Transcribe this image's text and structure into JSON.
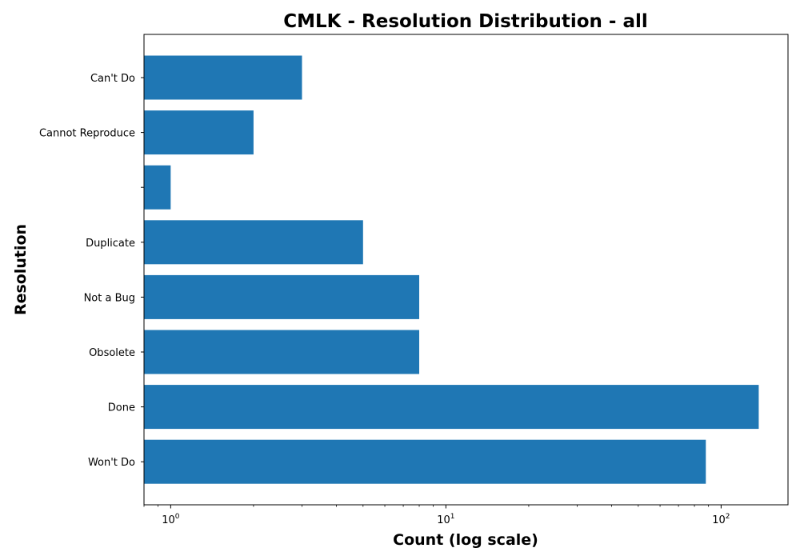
{
  "chart_data": {
    "type": "bar",
    "orientation": "horizontal",
    "title": "CMLK - Resolution Distribution - all",
    "xlabel": "Count (log scale)",
    "ylabel": "Resolution",
    "x_scale": "log",
    "xlim": [
      0.8,
      175
    ],
    "x_ticks": [
      {
        "value": 1,
        "base": "10",
        "exp": "0"
      },
      {
        "value": 10,
        "base": "10",
        "exp": "1"
      },
      {
        "value": 100,
        "base": "10",
        "exp": "2"
      }
    ],
    "categories": [
      "Can't Do",
      "Cannot Reproduce",
      "",
      "Duplicate",
      "Not a Bug",
      "Obsolete",
      "Done",
      "Won't Do"
    ],
    "values": [
      3,
      2,
      1,
      5,
      8,
      8,
      137,
      88
    ],
    "color": "#1f77b4",
    "grid": false,
    "legend": "none"
  }
}
